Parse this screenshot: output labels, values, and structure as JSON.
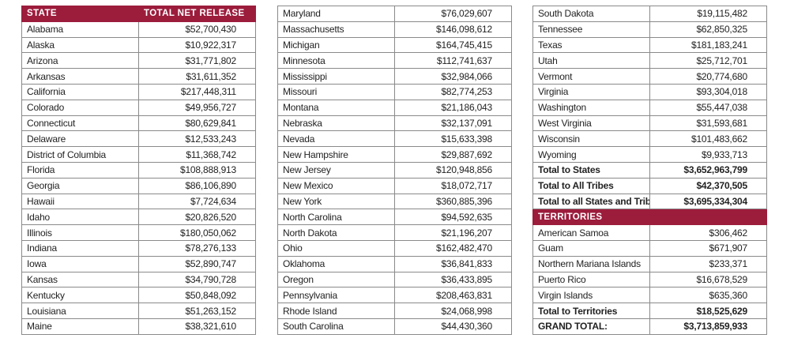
{
  "header": {
    "state": "STATE",
    "total_net_release": "TOTAL NET RELEASE"
  },
  "tables": [
    {
      "rows": [
        {
          "type": "header",
          "name": "STATE",
          "value": "TOTAL NET RELEASE"
        },
        {
          "name": "Alabama",
          "value": "$52,700,430"
        },
        {
          "name": "Alaska",
          "value": "$10,922,317"
        },
        {
          "name": "Arizona",
          "value": "$31,771,802"
        },
        {
          "name": "Arkansas",
          "value": "$31,611,352"
        },
        {
          "name": "California",
          "value": "$217,448,311"
        },
        {
          "name": "Colorado",
          "value": "$49,956,727"
        },
        {
          "name": "Connecticut",
          "value": "$80,629,841"
        },
        {
          "name": "Delaware",
          "value": "$12,533,243"
        },
        {
          "name": "District of Columbia",
          "value": "$11,368,742"
        },
        {
          "name": "Florida",
          "value": "$108,888,913"
        },
        {
          "name": "Georgia",
          "value": "$86,106,890"
        },
        {
          "name": "Hawaii",
          "value": "$7,724,634"
        },
        {
          "name": "Idaho",
          "value": "$20,826,520"
        },
        {
          "name": "Illinois",
          "value": "$180,050,062"
        },
        {
          "name": "Indiana",
          "value": "$78,276,133"
        },
        {
          "name": "Iowa",
          "value": "$52,890,747"
        },
        {
          "name": "Kansas",
          "value": "$34,790,728"
        },
        {
          "name": "Kentucky",
          "value": "$50,848,092"
        },
        {
          "name": "Louisiana",
          "value": "$51,263,152"
        },
        {
          "name": "Maine",
          "value": "$38,321,610"
        }
      ]
    },
    {
      "rows": [
        {
          "name": "Maryland",
          "value": "$76,029,607"
        },
        {
          "name": "Massachusetts",
          "value": "$146,098,612"
        },
        {
          "name": "Michigan",
          "value": "$164,745,415"
        },
        {
          "name": "Minnesota",
          "value": "$112,741,637"
        },
        {
          "name": "Mississippi",
          "value": "$32,984,066"
        },
        {
          "name": "Missouri",
          "value": "$82,774,253"
        },
        {
          "name": "Montana",
          "value": "$21,186,043"
        },
        {
          "name": "Nebraska",
          "value": "$32,137,091"
        },
        {
          "name": "Nevada",
          "value": "$15,633,398"
        },
        {
          "name": "New Hampshire",
          "value": "$29,887,692"
        },
        {
          "name": "New Jersey",
          "value": "$120,948,856"
        },
        {
          "name": "New Mexico",
          "value": "$18,072,717"
        },
        {
          "name": "New York",
          "value": "$360,885,396"
        },
        {
          "name": "North Carolina",
          "value": "$94,592,635"
        },
        {
          "name": "North Dakota",
          "value": "$21,196,207"
        },
        {
          "name": "Ohio",
          "value": "$162,482,470"
        },
        {
          "name": "Oklahoma",
          "value": "$36,841,833"
        },
        {
          "name": "Oregon",
          "value": "$36,433,895"
        },
        {
          "name": "Pennsylvania",
          "value": "$208,463,831"
        },
        {
          "name": "Rhode Island",
          "value": "$24,068,998"
        },
        {
          "name": "South Carolina",
          "value": "$44,430,360"
        }
      ]
    },
    {
      "rows": [
        {
          "name": "South Dakota",
          "value": "$19,115,482"
        },
        {
          "name": "Tennessee",
          "value": "$62,850,325"
        },
        {
          "name": "Texas",
          "value": "$181,183,241"
        },
        {
          "name": "Utah",
          "value": "$25,712,701"
        },
        {
          "name": "Vermont",
          "value": "$20,774,680"
        },
        {
          "name": "Virginia",
          "value": "$93,304,018"
        },
        {
          "name": "Washington",
          "value": "$55,447,038"
        },
        {
          "name": "West Virginia",
          "value": "$31,593,681"
        },
        {
          "name": "Wisconsin",
          "value": "$101,483,662"
        },
        {
          "name": "Wyoming",
          "value": "$9,933,713"
        },
        {
          "type": "total",
          "name": "Total to States",
          "value": "$3,652,963,799"
        },
        {
          "type": "total",
          "name": "Total to All Tribes",
          "value": "$42,370,505"
        },
        {
          "type": "total",
          "name": "Total to all States and Tribes",
          "value": "$3,695,334,304"
        },
        {
          "type": "section",
          "name": "TERRITORIES",
          "value": ""
        },
        {
          "name": "American Samoa",
          "value": "$306,462"
        },
        {
          "name": "Guam",
          "value": "$671,907"
        },
        {
          "name": "Northern Mariana Islands",
          "value": "$233,371"
        },
        {
          "name": "Puerto Rico",
          "value": "$16,678,529"
        },
        {
          "name": "Virgin Islands",
          "value": "$635,360"
        },
        {
          "type": "total",
          "name": "Total to Territories",
          "value": "$18,525,629"
        },
        {
          "type": "total",
          "name": "GRAND TOTAL:",
          "value": "$3,713,859,933"
        }
      ]
    }
  ],
  "colors": {
    "header_bg": "#9c1c3c",
    "header_text": "#ffffff",
    "border": "#8a8a8a"
  }
}
